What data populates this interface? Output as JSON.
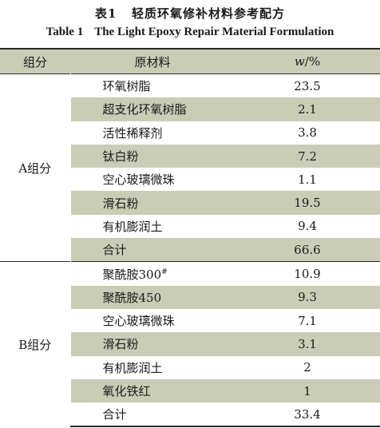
{
  "caption": {
    "cn_label": "表1",
    "cn_title": "轻质环氧修补材料参考配方",
    "en_label": "Table 1",
    "en_title": "The Light Epoxy Repair Material Formulation"
  },
  "headers": {
    "group": "组分",
    "material": "原材料",
    "unit_var": "w",
    "unit_rest": "/%"
  },
  "groups": [
    {
      "name": "A组分",
      "rows": [
        {
          "material": "环氧树脂",
          "value": "23.5"
        },
        {
          "material": "超支化环氧树脂",
          "value": "2.1"
        },
        {
          "material": "活性稀释剂",
          "value": "3.8"
        },
        {
          "material": "钛白粉",
          "value": "7.2"
        },
        {
          "material": "空心玻璃微珠",
          "value": "1.1"
        },
        {
          "material": "滑石粉",
          "value": "19.5"
        },
        {
          "material": "有机膨润土",
          "value": "9.4"
        },
        {
          "material": "合计",
          "value": "66.6"
        }
      ]
    },
    {
      "name": "B组分",
      "rows": [
        {
          "material": "聚酰胺300",
          "sup": "#",
          "value": "10.9"
        },
        {
          "material": "聚酰胺450",
          "value": "9.3"
        },
        {
          "material": "空心玻璃微珠",
          "value": "7.1"
        },
        {
          "material": "滑石粉",
          "value": "3.1"
        },
        {
          "material": "有机膨润土",
          "value": "2"
        },
        {
          "material": "氧化铁红",
          "value": "1"
        },
        {
          "material": "合计",
          "value": "33.4"
        }
      ]
    }
  ]
}
